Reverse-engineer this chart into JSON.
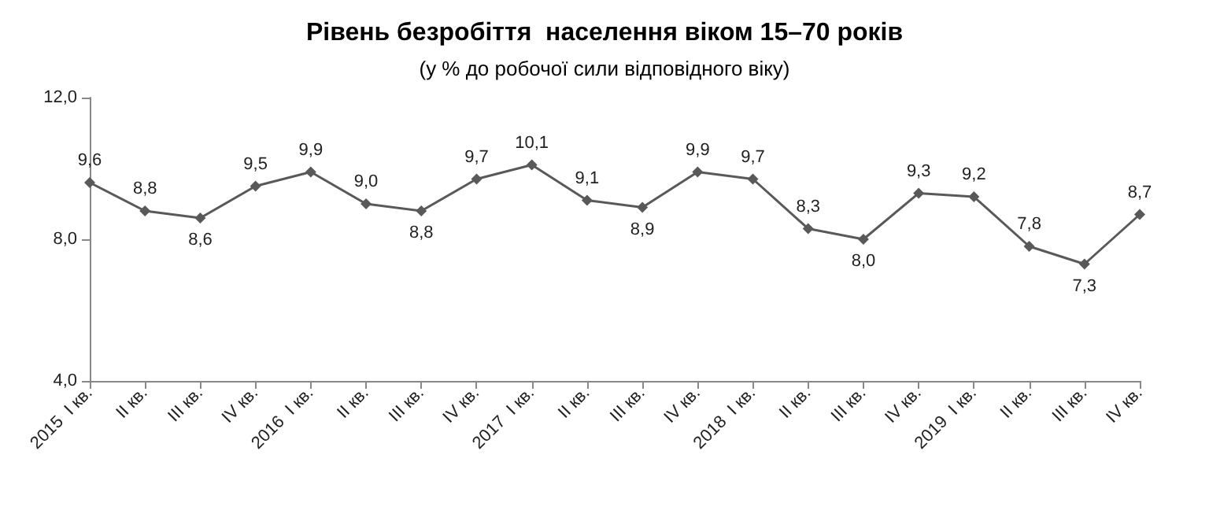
{
  "chart_data": {
    "type": "line",
    "title": "Рівень безробіття  населення віком 15–70 років",
    "subtitle": "(у % до робочої сили відповідного віку)",
    "categories": [
      "2015  I кв.",
      "II кв.",
      "III кв.",
      "IV кв.",
      "2016  I кв.",
      "II кв.",
      "III кв.",
      "IV кв.",
      "2017  I кв.",
      "II кв.",
      "III кв.",
      "IV кв.",
      "2018  I кв.",
      "II кв.",
      "III кв.",
      "IV кв.",
      "2019  I кв.",
      "II кв.",
      "III кв.",
      "IV кв."
    ],
    "series": [
      {
        "color": "#595959",
        "values": [
          9.6,
          8.8,
          8.6,
          9.5,
          9.9,
          9.0,
          8.8,
          9.7,
          10.1,
          9.1,
          8.9,
          9.9,
          9.7,
          8.3,
          8.0,
          9.3,
          9.2,
          7.8,
          7.3,
          8.7
        ],
        "value_labels": [
          "9,6",
          "8,8",
          "8,6",
          "9,5",
          "9,9",
          "9,0",
          "8,8",
          "9,7",
          "10,1",
          "9,1",
          "8,9",
          "9,9",
          "9,7",
          "8,3",
          "8,0",
          "9,3",
          "9,2",
          "7,8",
          "7,3",
          "8,7"
        ]
      }
    ],
    "ylim": [
      4,
      12
    ],
    "yticks": [
      {
        "value": 4,
        "label": "4,0"
      },
      {
        "value": 8,
        "label": "8,0"
      },
      {
        "value": 12,
        "label": "12,0"
      }
    ],
    "marker": "diamond",
    "line_style": "solid"
  }
}
